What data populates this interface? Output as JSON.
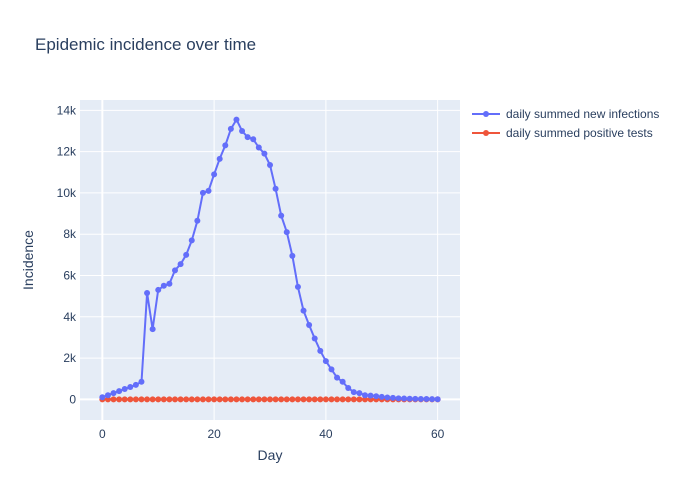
{
  "chart_data": {
    "type": "line",
    "title": "Epidemic incidence over time",
    "xlabel": "Day",
    "ylabel": "Incidence",
    "xlim": [
      -4,
      64
    ],
    "ylim": [
      -1000,
      14500
    ],
    "x_ticks": [
      0,
      20,
      40,
      60
    ],
    "x_tick_labels": [
      "0",
      "20",
      "40",
      "60"
    ],
    "y_ticks": [
      0,
      2000,
      4000,
      6000,
      8000,
      10000,
      12000,
      14000
    ],
    "y_tick_labels": [
      "0",
      "2k",
      "4k",
      "6k",
      "8k",
      "10k",
      "12k",
      "14k"
    ],
    "grid": true,
    "legend_position": "top-right",
    "x": [
      0,
      1,
      2,
      3,
      4,
      5,
      6,
      7,
      8,
      9,
      10,
      11,
      12,
      13,
      14,
      15,
      16,
      17,
      18,
      19,
      20,
      21,
      22,
      23,
      24,
      25,
      26,
      27,
      28,
      29,
      30,
      31,
      32,
      33,
      34,
      35,
      36,
      37,
      38,
      39,
      40,
      41,
      42,
      43,
      44,
      45,
      46,
      47,
      48,
      49,
      50,
      51,
      52,
      53,
      54,
      55,
      56,
      57,
      58,
      59,
      60
    ],
    "series": [
      {
        "name": "daily summed new infections",
        "color": "#636efa",
        "values": [
          100,
          200,
          300,
          400,
          500,
          600,
          700,
          850,
          5150,
          3400,
          5300,
          5500,
          5600,
          6250,
          6550,
          7000,
          7700,
          8650,
          10000,
          10100,
          10900,
          11650,
          12300,
          13100,
          13550,
          13000,
          12700,
          12600,
          12200,
          11900,
          11350,
          10200,
          8900,
          8100,
          6950,
          5450,
          4300,
          3600,
          2950,
          2350,
          1850,
          1450,
          1050,
          850,
          550,
          350,
          300,
          200,
          180,
          150,
          120,
          90,
          70,
          50,
          40,
          30,
          25,
          20,
          15,
          10,
          5
        ]
      },
      {
        "name": "daily summed positive tests",
        "color": "#ef553b",
        "values": [
          0,
          0,
          0,
          0,
          0,
          0,
          0,
          0,
          0,
          0,
          0,
          0,
          0,
          0,
          0,
          0,
          0,
          0,
          0,
          0,
          0,
          0,
          0,
          0,
          0,
          0,
          0,
          0,
          0,
          0,
          0,
          0,
          0,
          0,
          0,
          0,
          0,
          0,
          0,
          0,
          0,
          0,
          0,
          0,
          0,
          0,
          0,
          0,
          0,
          0,
          0,
          0,
          0,
          0,
          0,
          0,
          0,
          0,
          0,
          0,
          0
        ]
      }
    ]
  }
}
